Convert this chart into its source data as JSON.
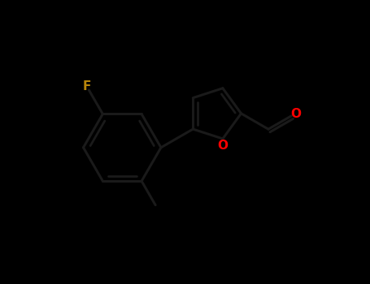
{
  "background_color": "#000000",
  "bond_color": "#1a1a1a",
  "atom_colors": {
    "F": "#b8860b",
    "O": "#ff0000",
    "C": "#1a1a1a"
  },
  "figsize": [
    4.55,
    3.5
  ],
  "dpi": 100,
  "xlim": [
    0,
    10
  ],
  "ylim": [
    0,
    7.7
  ],
  "bond_lw": 2.2,
  "inner_lw": 2.0,
  "label_fontsize": 11
}
